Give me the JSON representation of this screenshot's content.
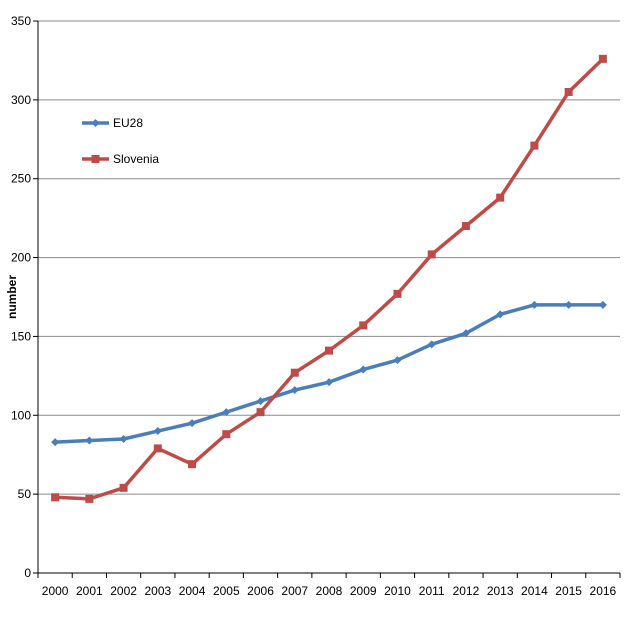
{
  "chart_data": {
    "type": "line",
    "title": "",
    "xlabel": "",
    "ylabel": "number",
    "ylim": [
      0,
      350
    ],
    "yticks": [
      0,
      50,
      100,
      150,
      200,
      250,
      300,
      350
    ],
    "grid": true,
    "legend_position": "top-left",
    "x": [
      "2000",
      "2001",
      "2002",
      "2003",
      "2004",
      "2005",
      "2006",
      "2007",
      "2008",
      "2009",
      "2010",
      "2011",
      "2012",
      "2013",
      "2014",
      "2015",
      "2016"
    ],
    "series": [
      {
        "name": "EU28",
        "color": "#4a7ebb",
        "marker": "diamond",
        "values": [
          83,
          84,
          85,
          90,
          95,
          102,
          109,
          116,
          121,
          129,
          135,
          145,
          152,
          164,
          170,
          170,
          170
        ]
      },
      {
        "name": "Slovenia",
        "color": "#be4b48",
        "marker": "square",
        "values": [
          48,
          47,
          54,
          79,
          69,
          88,
          102,
          127,
          141,
          157,
          177,
          202,
          220,
          238,
          271,
          305,
          326
        ]
      }
    ]
  }
}
